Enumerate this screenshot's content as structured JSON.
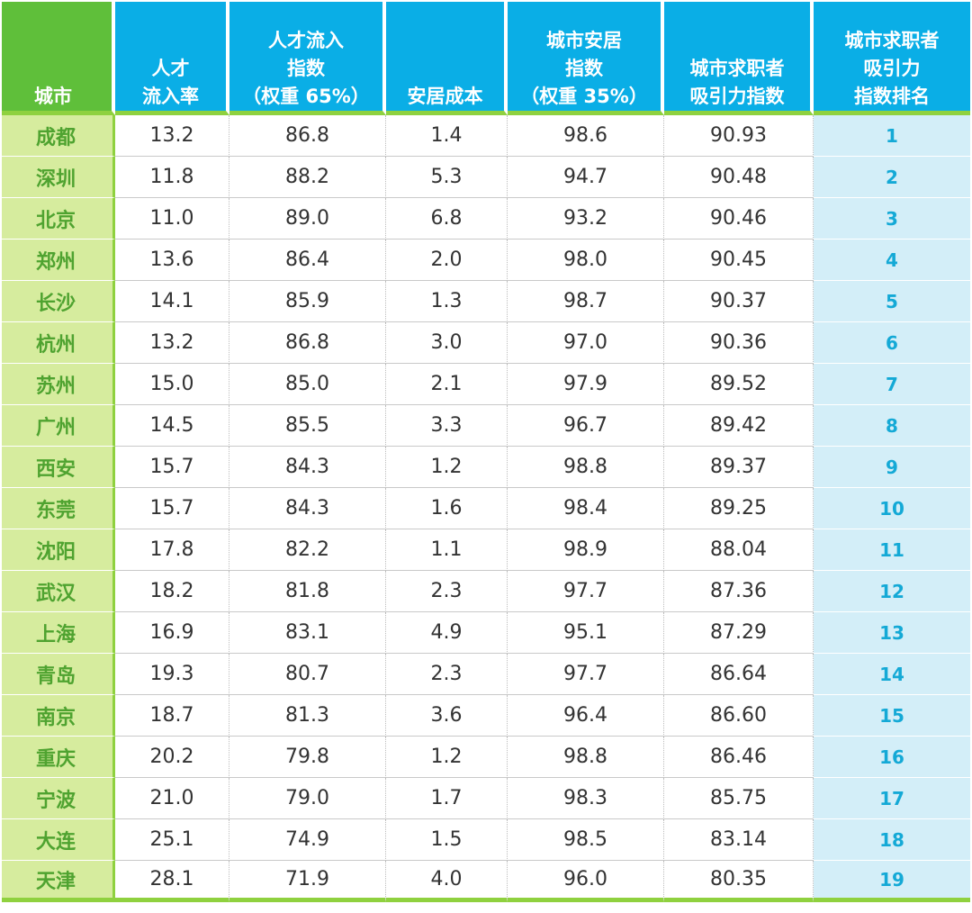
{
  "headers": {
    "city": "城市",
    "talent_inflow_rate": [
      "人才",
      "流入率"
    ],
    "talent_inflow_index": [
      "人才流入",
      "指数",
      "（权重 65%）"
    ],
    "housing_cost": "安居成本",
    "housing_index": [
      "城市安居",
      "指数",
      "（权重 35%）"
    ],
    "attraction_index": [
      "城市求职者",
      "吸引力指数"
    ],
    "rank": [
      "城市求职者",
      "吸引力",
      "指数排名"
    ]
  },
  "rows": [
    {
      "city": "成都",
      "rate": "13.2",
      "inflow": "86.8",
      "cost": "1.4",
      "housing": "98.6",
      "attract": "90.93",
      "rank": "1"
    },
    {
      "city": "深圳",
      "rate": "11.8",
      "inflow": "88.2",
      "cost": "5.3",
      "housing": "94.7",
      "attract": "90.48",
      "rank": "2"
    },
    {
      "city": "北京",
      "rate": "11.0",
      "inflow": "89.0",
      "cost": "6.8",
      "housing": "93.2",
      "attract": "90.46",
      "rank": "3"
    },
    {
      "city": "郑州",
      "rate": "13.6",
      "inflow": "86.4",
      "cost": "2.0",
      "housing": "98.0",
      "attract": "90.45",
      "rank": "4"
    },
    {
      "city": "长沙",
      "rate": "14.1",
      "inflow": "85.9",
      "cost": "1.3",
      "housing": "98.7",
      "attract": "90.37",
      "rank": "5"
    },
    {
      "city": "杭州",
      "rate": "13.2",
      "inflow": "86.8",
      "cost": "3.0",
      "housing": "97.0",
      "attract": "90.36",
      "rank": "6"
    },
    {
      "city": "苏州",
      "rate": "15.0",
      "inflow": "85.0",
      "cost": "2.1",
      "housing": "97.9",
      "attract": "89.52",
      "rank": "7"
    },
    {
      "city": "广州",
      "rate": "14.5",
      "inflow": "85.5",
      "cost": "3.3",
      "housing": "96.7",
      "attract": "89.42",
      "rank": "8"
    },
    {
      "city": "西安",
      "rate": "15.7",
      "inflow": "84.3",
      "cost": "1.2",
      "housing": "98.8",
      "attract": "89.37",
      "rank": "9"
    },
    {
      "city": "东莞",
      "rate": "15.7",
      "inflow": "84.3",
      "cost": "1.6",
      "housing": "98.4",
      "attract": "89.25",
      "rank": "10"
    },
    {
      "city": "沈阳",
      "rate": "17.8",
      "inflow": "82.2",
      "cost": "1.1",
      "housing": "98.9",
      "attract": "88.04",
      "rank": "11"
    },
    {
      "city": "武汉",
      "rate": "18.2",
      "inflow": "81.8",
      "cost": "2.3",
      "housing": "97.7",
      "attract": "87.36",
      "rank": "12"
    },
    {
      "city": "上海",
      "rate": "16.9",
      "inflow": "83.1",
      "cost": "4.9",
      "housing": "95.1",
      "attract": "87.29",
      "rank": "13"
    },
    {
      "city": "青岛",
      "rate": "19.3",
      "inflow": "80.7",
      "cost": "2.3",
      "housing": "97.7",
      "attract": "86.64",
      "rank": "14"
    },
    {
      "city": "南京",
      "rate": "18.7",
      "inflow": "81.3",
      "cost": "3.6",
      "housing": "96.4",
      "attract": "86.60",
      "rank": "15"
    },
    {
      "city": "重庆",
      "rate": "20.2",
      "inflow": "79.8",
      "cost": "1.2",
      "housing": "98.8",
      "attract": "86.46",
      "rank": "16"
    },
    {
      "city": "宁波",
      "rate": "21.0",
      "inflow": "79.0",
      "cost": "1.7",
      "housing": "98.3",
      "attract": "85.75",
      "rank": "17"
    },
    {
      "city": "大连",
      "rate": "25.1",
      "inflow": "74.9",
      "cost": "1.5",
      "housing": "98.5",
      "attract": "83.14",
      "rank": "18"
    },
    {
      "city": "天津",
      "rate": "28.1",
      "inflow": "71.9",
      "cost": "4.0",
      "housing": "96.0",
      "attract": "80.35",
      "rank": "19"
    }
  ],
  "colors": {
    "header_blue": "#0aaee6",
    "header_green": "#5fbf3a",
    "city_column_bg": "#d6ec9e",
    "city_text": "#4fa330",
    "rank_column_bg": "#d3eef8",
    "rank_text": "#14a9d6",
    "accent_line": "#8fd13f"
  }
}
